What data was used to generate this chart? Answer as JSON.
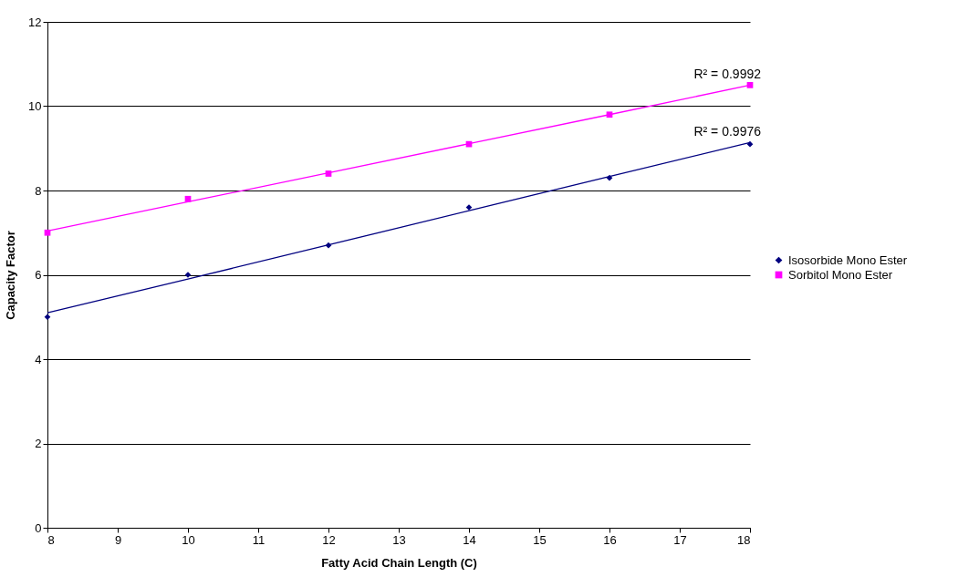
{
  "chart_data": {
    "type": "scatter",
    "xlabel": "Fatty Acid Chain Length (C)",
    "ylabel": "Capacity Factor",
    "x": [
      8,
      10,
      12,
      14,
      16,
      18
    ],
    "series": [
      {
        "name": "Isosorbide Mono Ester",
        "color": "#000080",
        "marker": "diamond",
        "values": [
          5.0,
          6.0,
          6.7,
          7.6,
          8.3,
          9.1
        ]
      },
      {
        "name": "Sorbitol Mono Ester",
        "color": "#ff00ff",
        "marker": "square",
        "values": [
          7.0,
          7.8,
          8.4,
          9.1,
          9.8,
          10.5
        ]
      },
      {
        "type": "line",
        "color": "#000080",
        "values": [
          5.1,
          5.9,
          6.71,
          7.52,
          8.33,
          9.14
        ]
      },
      {
        "type": "line",
        "color": "#ff00ff",
        "values": [
          7.04,
          7.73,
          8.42,
          9.11,
          9.8,
          10.5
        ]
      }
    ],
    "annotations": [
      "R² = 0.9976",
      "R² = 0.9992"
    ],
    "xlim": [
      8,
      18
    ],
    "xticks": [
      8,
      9,
      10,
      11,
      12,
      13,
      14,
      15,
      16,
      17,
      18
    ],
    "ylim": [
      0,
      12
    ],
    "yticks": [
      0,
      2,
      4,
      6,
      8,
      10,
      12
    ],
    "grid": "y",
    "legend": "right"
  }
}
